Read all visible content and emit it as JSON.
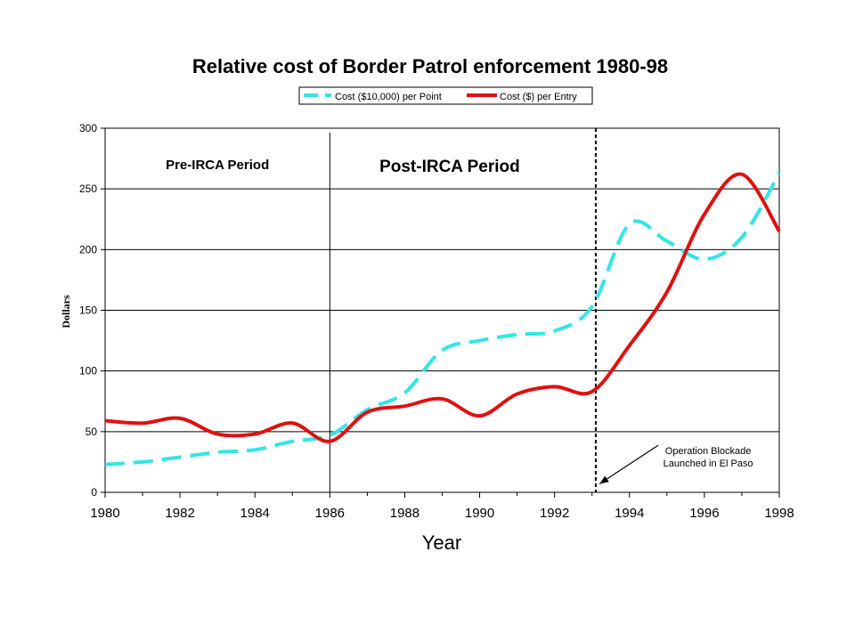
{
  "chart_data": {
    "type": "line",
    "title": "Relative cost of Border Patrol  enforcement 1980-98",
    "xlabel": "Year",
    "ylabel": "Dollars",
    "xlim": [
      1980,
      1998
    ],
    "ylim": [
      0,
      300
    ],
    "x_ticks": [
      "1980",
      "1982",
      "1984",
      "1986",
      "1988",
      "1990",
      "1992",
      "1994",
      "1996",
      "1998"
    ],
    "y_ticks": [
      "0",
      "50",
      "100",
      "150",
      "200",
      "250",
      "300"
    ],
    "grid": "horizontal",
    "legend_position": "top",
    "series": [
      {
        "name": "Cost ($10,000) per Point",
        "color": "#33e5e5",
        "style": "dashed",
        "x": [
          1980,
          1981,
          1982,
          1983,
          1984,
          1985,
          1986,
          1987,
          1988,
          1989,
          1990,
          1991,
          1992,
          1993,
          1994,
          1995,
          1996,
          1997,
          1998
        ],
        "y": [
          23,
          25,
          29,
          33,
          35,
          42,
          47,
          68,
          82,
          117,
          125,
          130,
          133,
          153,
          221,
          207,
          192,
          210,
          263
        ]
      },
      {
        "name": "Cost ($) per Entry",
        "color": "#e01010",
        "style": "solid",
        "x": [
          1980,
          1981,
          1982,
          1983,
          1984,
          1985,
          1986,
          1987,
          1988,
          1989,
          1990,
          1991,
          1992,
          1993,
          1994,
          1995,
          1996,
          1997,
          1998
        ],
        "y": [
          59,
          57,
          61,
          48,
          48,
          57,
          42,
          66,
          71,
          77,
          63,
          81,
          87,
          83,
          121,
          165,
          229,
          262,
          215
        ]
      }
    ],
    "period_divider_x": 1986,
    "periods": [
      {
        "label": "Pre-IRCA Period",
        "x": 1983
      },
      {
        "label": "Post-IRCA Period",
        "x": 1989.2
      }
    ],
    "event_line_x": 1993.1,
    "annotation": {
      "lines": [
        "Operation Blockade",
        "Launched in El Paso"
      ],
      "x": 1996.1,
      "y": 30,
      "arrow_to_x": 1993.2,
      "arrow_to_y": 7
    }
  }
}
